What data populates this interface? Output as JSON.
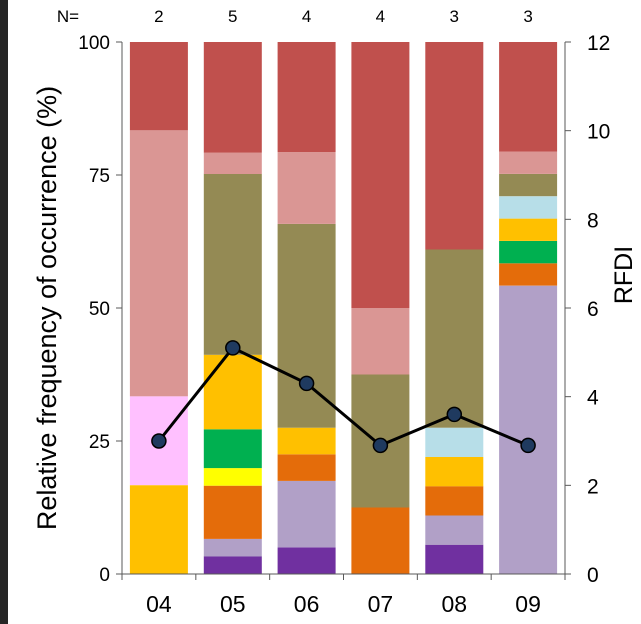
{
  "chart_data": {
    "type": "bar",
    "stacked": true,
    "categories": [
      "04",
      "05",
      "06",
      "07",
      "08",
      "09"
    ],
    "n_prefix": "N=",
    "n_values": [
      "2",
      "5",
      "4",
      "4",
      "3",
      "3"
    ],
    "ylabel": "Relative frequency of occurrence (%)",
    "y2label": "RFDI",
    "ylim": [
      0,
      100
    ],
    "y_ticks": [
      "0",
      "25",
      "50",
      "75",
      "100"
    ],
    "y2lim": [
      0,
      12
    ],
    "y2_ticks": [
      "0",
      "2",
      "4",
      "6",
      "8",
      "10",
      "12"
    ],
    "grid": false,
    "stacks": [
      [
        {
          "color": "#FFC000",
          "value": 16.7
        },
        {
          "color": "#FFC0FF",
          "value": 16.7
        },
        {
          "color": "#DA9694",
          "value": 50
        },
        {
          "color": "#C0504D",
          "value": 16.6
        }
      ],
      [
        {
          "color": "#7030A0",
          "value": 3.3
        },
        {
          "color": "#B1A0C7",
          "value": 3.3
        },
        {
          "color": "#E46C0A",
          "value": 10
        },
        {
          "color": "#FFFF00",
          "value": 3.3
        },
        {
          "color": "#00B050",
          "value": 7.3
        },
        {
          "color": "#FFC000",
          "value": 14
        },
        {
          "color": "#948A54",
          "value": 34
        },
        {
          "color": "#DA9694",
          "value": 4
        },
        {
          "color": "#C0504D",
          "value": 20.8
        }
      ],
      [
        {
          "color": "#7030A0",
          "value": 5
        },
        {
          "color": "#B1A0C7",
          "value": 12.5
        },
        {
          "color": "#E46C0A",
          "value": 5
        },
        {
          "color": "#FFC000",
          "value": 5
        },
        {
          "color": "#948A54",
          "value": 38.3
        },
        {
          "color": "#DA9694",
          "value": 13.5
        },
        {
          "color": "#C0504D",
          "value": 20.7
        }
      ],
      [
        {
          "color": "#E46C0A",
          "value": 12.5
        },
        {
          "color": "#948A54",
          "value": 25
        },
        {
          "color": "#DA9694",
          "value": 12.5
        },
        {
          "color": "#C0504D",
          "value": 50
        }
      ],
      [
        {
          "color": "#7030A0",
          "value": 5.5
        },
        {
          "color": "#B1A0C7",
          "value": 5.5
        },
        {
          "color": "#E46C0A",
          "value": 5.5
        },
        {
          "color": "#FFC000",
          "value": 5.5
        },
        {
          "color": "#B7DEE8",
          "value": 5.5
        },
        {
          "color": "#948A54",
          "value": 33.5
        },
        {
          "color": "#C0504D",
          "value": 39
        }
      ],
      [
        {
          "color": "#B1A0C7",
          "value": 54.2
        },
        {
          "color": "#E46C0A",
          "value": 4.2
        },
        {
          "color": "#00B050",
          "value": 4.2
        },
        {
          "color": "#FFC000",
          "value": 4.2
        },
        {
          "color": "#B7DEE8",
          "value": 4.2
        },
        {
          "color": "#948A54",
          "value": 4.2
        },
        {
          "color": "#DA9694",
          "value": 4.2
        },
        {
          "color": "#C0504D",
          "value": 20.6
        }
      ]
    ],
    "rfdi_line": {
      "color": "#000000",
      "marker_color": "#1F3A5F",
      "values": [
        3.0,
        5.1,
        4.3,
        2.9,
        3.6,
        2.9
      ]
    }
  }
}
